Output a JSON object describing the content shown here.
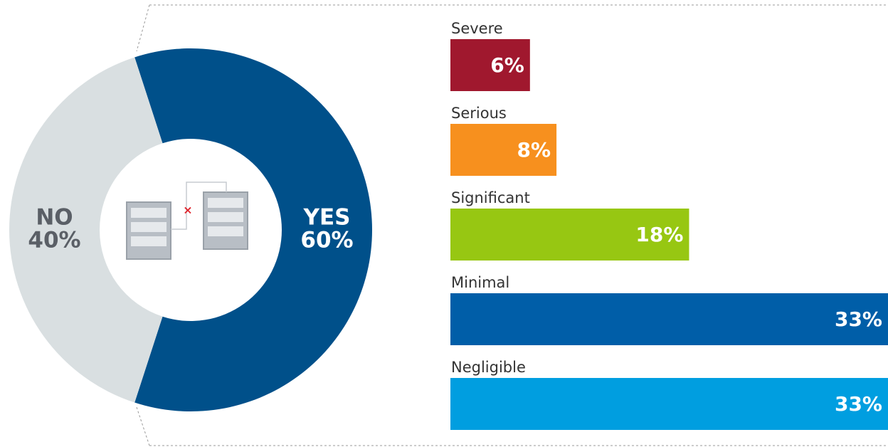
{
  "chart_data": [
    {
      "type": "donut",
      "categories": [
        "YES",
        "NO"
      ],
      "values": [
        60,
        40
      ],
      "value_labels": [
        "60%",
        "40%"
      ],
      "colors": [
        "#00508a",
        "#d9dfe1"
      ]
    },
    {
      "type": "bar",
      "orientation": "horizontal",
      "categories": [
        "Severe",
        "Serious",
        "Significant",
        "Minimal",
        "Negligible"
      ],
      "values": [
        6,
        8,
        18,
        33,
        33
      ],
      "value_labels": [
        "6%",
        "8%",
        "18%",
        "33%",
        "33%"
      ],
      "colors": [
        "#a0182e",
        "#f7901e",
        "#97c712",
        "#005ea8",
        "#009ee0"
      ]
    }
  ]
}
